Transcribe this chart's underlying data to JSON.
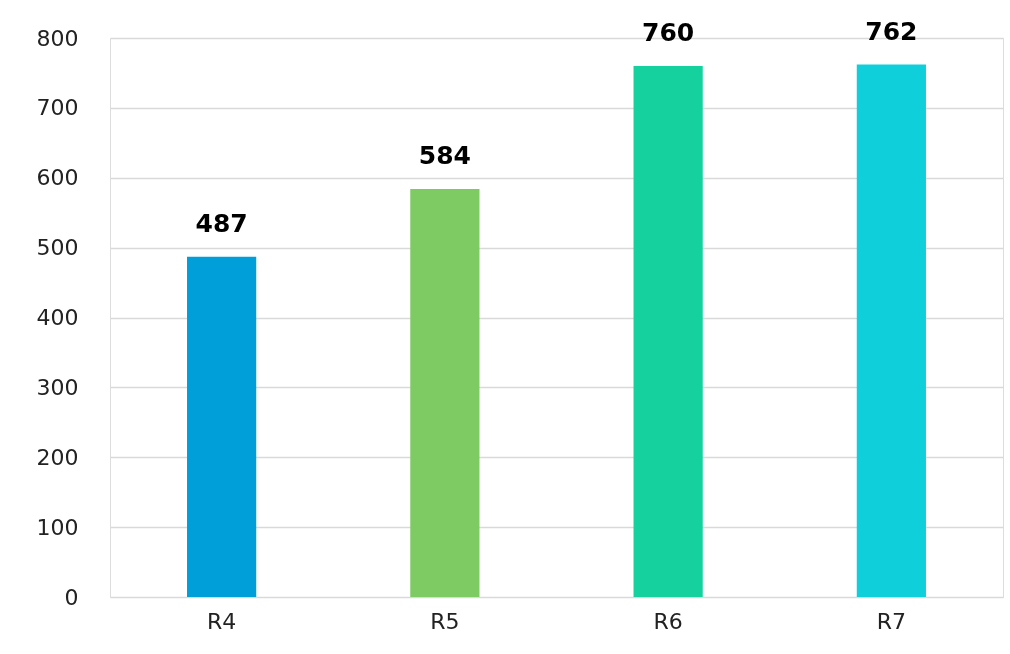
{
  "chart_data": {
    "type": "bar",
    "categories": [
      "R4",
      "R5",
      "R6",
      "R7"
    ],
    "values": [
      487,
      584,
      760,
      762
    ],
    "colors": [
      "#009fd9",
      "#7dcb62",
      "#14d19d",
      "#0fd0da"
    ],
    "ylim": [
      0,
      800
    ],
    "yticks": [
      0,
      100,
      200,
      300,
      400,
      500,
      600,
      700,
      800
    ],
    "grid": "y",
    "data_labels": true
  }
}
